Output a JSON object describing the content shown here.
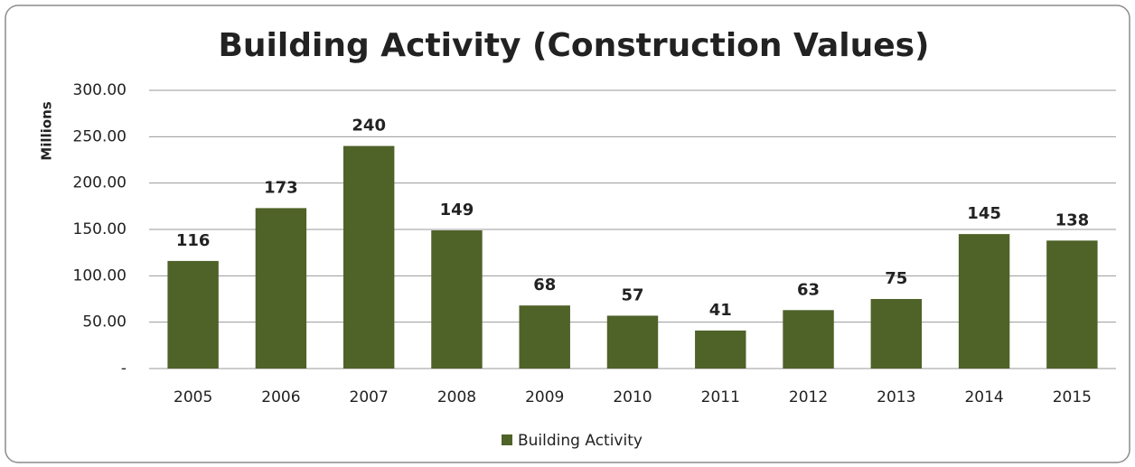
{
  "chart_data": {
    "type": "bar",
    "title": "Building Activity (Construction Values)",
    "y_axis_label": "Millions",
    "categories": [
      "2005",
      "2006",
      "2007",
      "2008",
      "2009",
      "2010",
      "2011",
      "2012",
      "2013",
      "2014",
      "2015"
    ],
    "series": [
      {
        "name": "Building Activity",
        "color": "#4f6228",
        "values": [
          116,
          173,
          240,
          149,
          68,
          57,
          41,
          63,
          75,
          145,
          138
        ]
      }
    ],
    "ylim": [
      0,
      300
    ],
    "yticks": [
      {
        "value": 0,
        "label": "-"
      },
      {
        "value": 50,
        "label": "50.00"
      },
      {
        "value": 100,
        "label": "100.00"
      },
      {
        "value": 150,
        "label": "150.00"
      },
      {
        "value": 200,
        "label": "200.00"
      },
      {
        "value": 250,
        "label": "250.00"
      },
      {
        "value": 300,
        "label": "300.00"
      }
    ],
    "grid": true,
    "legend": "bottom"
  }
}
